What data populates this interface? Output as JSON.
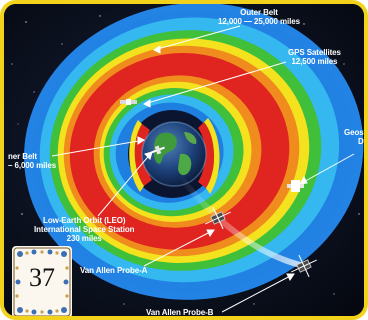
{
  "labels": {
    "outer_belt_title": "Outer Belt",
    "outer_belt_range": "12,000 — 25,000 miles",
    "gps_title": "GPS Satellites",
    "gps_range": "12,500 miles",
    "inner_belt_title": "ner Belt",
    "inner_belt_range": "– 6,000 miles",
    "leo_line1": "Low-Earth Orbit (LEO)",
    "leo_line2": "International Space Station",
    "leo_line3": "230 miles",
    "probe_a": "Van Allen Probe-A",
    "probe_b": "Van Allen Probe-B",
    "geo_line1": "Geosy",
    "geo_line2": "Dy"
  },
  "badge": {
    "number": "37"
  },
  "colors": {
    "frame": "#f2d21b",
    "space": "#05070f",
    "belt_blue": "#1f7fe0",
    "belt_cyan": "#35b7f0",
    "belt_green": "#3fbf3a",
    "belt_yellow": "#f3e21d",
    "belt_orange": "#f08b1d",
    "belt_red": "#e0241f"
  }
}
